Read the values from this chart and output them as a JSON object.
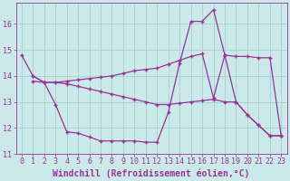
{
  "background_color": "#cce9e9",
  "line_color": "#993399",
  "grid_color": "#aad4d4",
  "xlabel": "Windchill (Refroidissement éolien,°C)",
  "xlabel_fontsize": 7.0,
  "tick_fontsize": 6.0,
  "ylim": [
    11.0,
    16.8
  ],
  "xlim": [
    -0.5,
    23.5
  ],
  "yticks": [
    11,
    12,
    13,
    14,
    15,
    16
  ],
  "xticks": [
    0,
    1,
    2,
    3,
    4,
    5,
    6,
    7,
    8,
    9,
    10,
    11,
    12,
    13,
    14,
    15,
    16,
    17,
    18,
    19,
    20,
    21,
    22,
    23
  ],
  "line1_x": [
    0,
    1,
    2,
    3,
    4,
    5,
    6,
    7,
    8,
    9,
    10,
    11,
    12,
    13,
    14,
    15,
    16,
    17,
    18,
    19,
    20,
    21,
    22,
    23
  ],
  "line1_y": [
    14.8,
    14.0,
    13.75,
    12.9,
    11.85,
    11.8,
    11.65,
    11.5,
    11.5,
    11.5,
    11.5,
    11.45,
    11.45,
    12.6,
    14.5,
    16.1,
    16.1,
    16.55,
    14.8,
    13.0,
    12.5,
    12.1,
    11.7,
    11.7
  ],
  "line2_x": [
    1,
    2,
    3,
    4,
    5,
    6,
    7,
    8,
    9,
    10,
    11,
    12,
    13,
    14,
    15,
    16,
    17,
    18,
    19,
    20,
    21,
    22,
    23
  ],
  "line2_y": [
    13.8,
    13.75,
    13.75,
    13.8,
    13.85,
    13.9,
    13.95,
    14.0,
    14.1,
    14.2,
    14.25,
    14.3,
    14.45,
    14.6,
    14.75,
    14.85,
    13.15,
    14.8,
    14.75,
    14.75,
    14.7,
    14.7,
    11.7
  ],
  "line3_x": [
    1,
    2,
    3,
    4,
    5,
    6,
    7,
    8,
    9,
    10,
    11,
    12,
    13,
    14,
    15,
    16,
    17,
    18,
    19,
    20,
    21,
    22,
    23
  ],
  "line3_y": [
    14.0,
    13.75,
    13.75,
    13.7,
    13.6,
    13.5,
    13.4,
    13.3,
    13.2,
    13.1,
    13.0,
    12.9,
    12.9,
    12.95,
    13.0,
    13.05,
    13.1,
    13.0,
    13.0,
    12.5,
    12.1,
    11.7,
    11.7
  ]
}
